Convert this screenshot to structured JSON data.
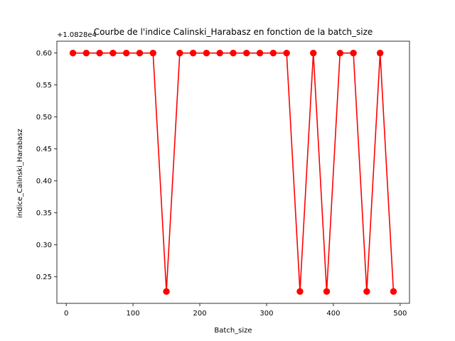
{
  "chart_data": {
    "type": "line",
    "title": "Courbe de l'indice Calinski_Harabasz en fonction de la batch_size",
    "xlabel": "Batch_size",
    "ylabel": "indice_Calinski_Harabasz",
    "offset_label": "+1.0828e4",
    "xlim": [
      -14,
      514
    ],
    "ylim": [
      0.2085,
      0.6185
    ],
    "x_ticks": [
      0,
      100,
      200,
      300,
      400,
      500
    ],
    "y_ticks": [
      0.25,
      0.3,
      0.35,
      0.4,
      0.45,
      0.5,
      0.55,
      0.6
    ],
    "y_tick_labels": [
      "0.25",
      "0.30",
      "0.35",
      "0.40",
      "0.45",
      "0.50",
      "0.55",
      "0.60"
    ],
    "grid": false,
    "series": [
      {
        "color": "#ff0000",
        "marker": "circle",
        "x": [
          10,
          30,
          50,
          70,
          90,
          110,
          130,
          150,
          170,
          190,
          210,
          230,
          250,
          270,
          290,
          310,
          330,
          350,
          370,
          390,
          410,
          430,
          450,
          470,
          490
        ],
        "y": [
          0.6,
          0.6,
          0.6,
          0.6,
          0.6,
          0.6,
          0.6,
          0.227,
          0.6,
          0.6,
          0.6,
          0.6,
          0.6,
          0.6,
          0.6,
          0.6,
          0.6,
          0.227,
          0.6,
          0.227,
          0.6,
          0.6,
          0.227,
          0.6,
          0.227
        ]
      }
    ]
  }
}
